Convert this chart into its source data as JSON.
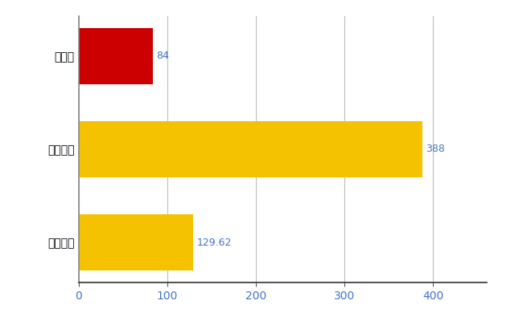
{
  "categories": [
    "全国平均",
    "全国最大",
    "山形県"
  ],
  "values": [
    129.62,
    388,
    84
  ],
  "bar_colors": [
    "#F5C200",
    "#F5C200",
    "#CC0000"
  ],
  "value_labels": [
    "129.62",
    "388",
    "84"
  ],
  "label_color": "#4472C4",
  "xlim": [
    0,
    460
  ],
  "xticks": [
    0,
    100,
    200,
    300,
    400
  ],
  "background_color": "#FFFFFF",
  "grid_color": "#BBBBBB",
  "bar_height": 0.6,
  "figsize": [
    6.5,
    4.0
  ],
  "dpi": 100,
  "tick_label_color": "#4472C4"
}
